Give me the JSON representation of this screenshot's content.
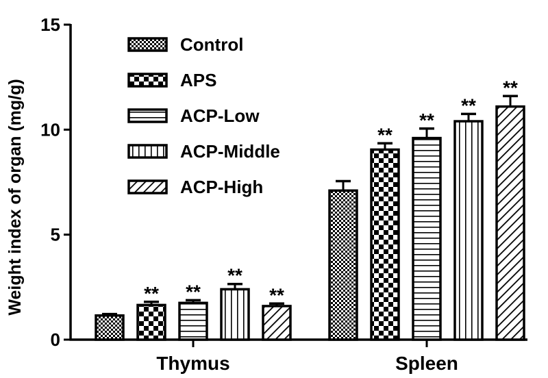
{
  "chart_data": {
    "type": "bar",
    "ylabel": "Weight index of organ (mg/g)",
    "xlabel": "",
    "ylim": [
      0,
      15
    ],
    "yticks": [
      0,
      5,
      10,
      15
    ],
    "categories": [
      "Thymus",
      "Spleen"
    ],
    "legend_position": "top-left",
    "significance_marker": "**",
    "series": [
      {
        "name": "Control",
        "pattern": "checker-fine",
        "values": [
          1.15,
          7.1
        ],
        "errors": [
          0.07,
          0.45
        ],
        "significant": [
          false,
          false
        ]
      },
      {
        "name": "APS",
        "pattern": "checker-coarse",
        "values": [
          1.65,
          9.05
        ],
        "errors": [
          0.15,
          0.3
        ],
        "significant": [
          true,
          true
        ]
      },
      {
        "name": "ACP-Low",
        "pattern": "hlines",
        "values": [
          1.75,
          9.6
        ],
        "errors": [
          0.13,
          0.45
        ],
        "significant": [
          true,
          true
        ]
      },
      {
        "name": "ACP-Middle",
        "pattern": "vlines",
        "values": [
          2.4,
          10.4
        ],
        "errors": [
          0.25,
          0.35
        ],
        "significant": [
          true,
          true
        ]
      },
      {
        "name": "ACP-High",
        "pattern": "diag",
        "values": [
          1.6,
          11.1
        ],
        "errors": [
          0.12,
          0.5
        ],
        "significant": [
          true,
          true
        ]
      }
    ]
  }
}
